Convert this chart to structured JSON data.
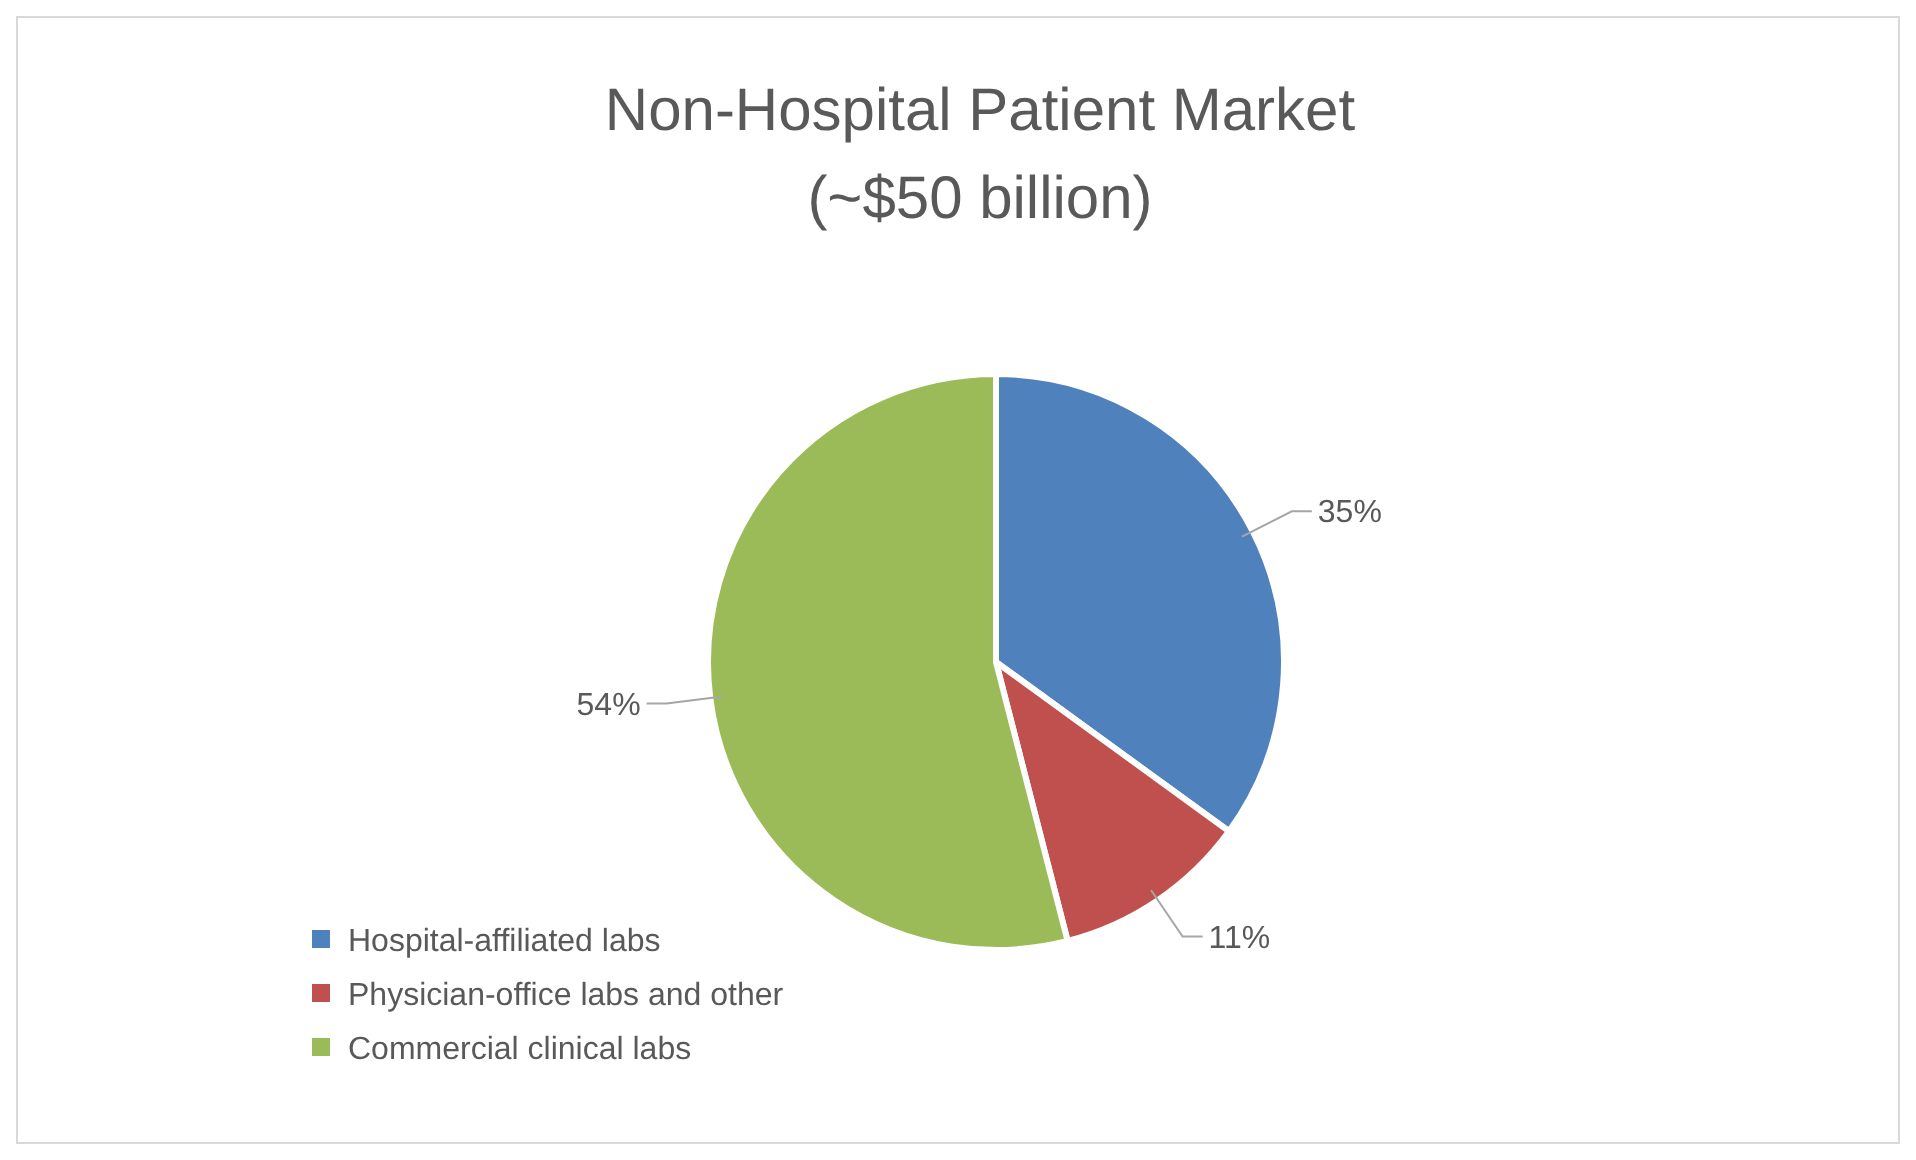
{
  "chart_data": {
    "type": "pie",
    "title": "Non-Hospital Patient Market",
    "subtitle": "(~$50 billion)",
    "categories": [
      "Hospital-affiliated labs",
      "Physician-office labs and other",
      "Commercial clinical labs"
    ],
    "values": [
      35,
      11,
      54
    ],
    "colors": [
      "#4f81bd",
      "#c0504d",
      "#9bbb59"
    ],
    "value_labels": [
      "35%",
      "11%",
      "54%"
    ],
    "legend": "bottom left"
  }
}
